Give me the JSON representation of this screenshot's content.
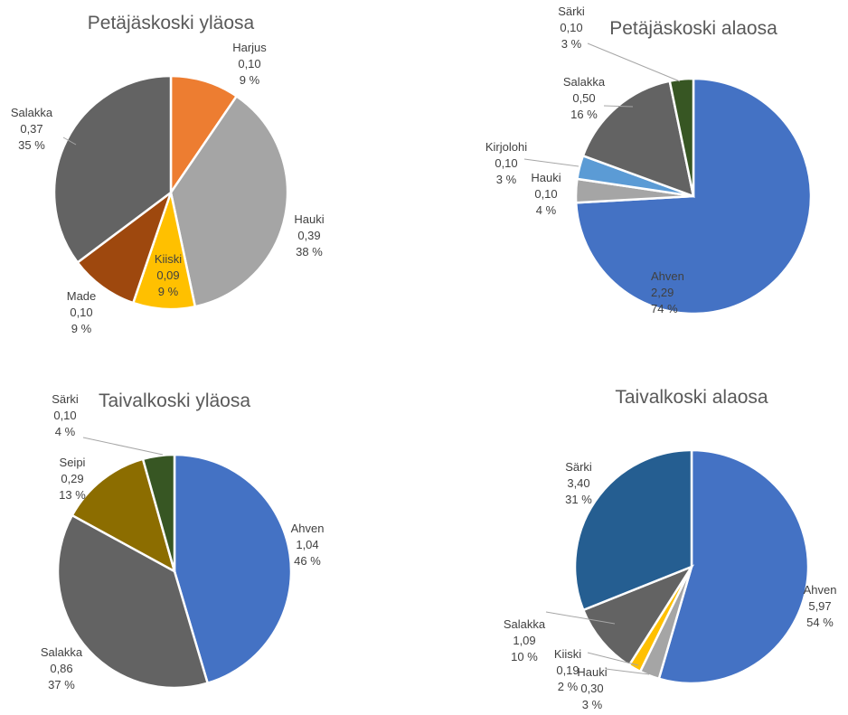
{
  "chart_data": [
    {
      "type": "pie",
      "title": "Petäjäskoski yläosa",
      "slices": [
        {
          "name": "Harjus",
          "value": 0.1,
          "value_text": "0,10",
          "percent_text": "9 %",
          "color": "#ED7D31"
        },
        {
          "name": "Hauki",
          "value": 0.39,
          "value_text": "0,39",
          "percent_text": "38 %",
          "color": "#A5A5A5"
        },
        {
          "name": "Kiiski",
          "value": 0.09,
          "value_text": "0,09",
          "percent_text": "9 %",
          "color": "#FFC000"
        },
        {
          "name": "Made",
          "value": 0.1,
          "value_text": "0,10",
          "percent_text": "9 %",
          "color": "#9E480E"
        },
        {
          "name": "Salakka",
          "value": 0.37,
          "value_text": "0,37",
          "percent_text": "35 %",
          "color": "#636363"
        }
      ]
    },
    {
      "type": "pie",
      "title": "Petäjäskoski alaosa",
      "slices": [
        {
          "name": "Ahven",
          "value": 2.29,
          "value_text": "2,29",
          "percent_text": "74 %",
          "color": "#4472C4"
        },
        {
          "name": "Hauki",
          "value": 0.1,
          "value_text": "0,10",
          "percent_text": "4 %",
          "color": "#A5A5A5"
        },
        {
          "name": "Kirjolohi",
          "value": 0.1,
          "value_text": "0,10",
          "percent_text": "3 %",
          "color": "#5B9BD5"
        },
        {
          "name": "Salakka",
          "value": 0.5,
          "value_text": "0,50",
          "percent_text": "16 %",
          "color": "#636363"
        },
        {
          "name": "Särki",
          "value": 0.1,
          "value_text": "0,10",
          "percent_text": "3 %",
          "color": "#375623"
        }
      ]
    },
    {
      "type": "pie",
      "title": "Taivalkoski  yläosa",
      "slices": [
        {
          "name": "Ahven",
          "value": 1.04,
          "value_text": "1,04",
          "percent_text": "46 %",
          "color": "#4472C4"
        },
        {
          "name": "Salakka",
          "value": 0.86,
          "value_text": "0,86",
          "percent_text": "37 %",
          "color": "#636363"
        },
        {
          "name": "Seipi",
          "value": 0.29,
          "value_text": "0,29",
          "percent_text": "13 %",
          "color": "#8C6D00"
        },
        {
          "name": "Särki",
          "value": 0.1,
          "value_text": "0,10",
          "percent_text": "4 %",
          "color": "#375623"
        }
      ]
    },
    {
      "type": "pie",
      "title": "Taivalkoski alaosa",
      "slices": [
        {
          "name": "Ahven",
          "value": 5.97,
          "value_text": "5,97",
          "percent_text": "54 %",
          "color": "#4472C4"
        },
        {
          "name": "Hauki",
          "value": 0.3,
          "value_text": "0,30",
          "percent_text": "3 %",
          "color": "#A5A5A5"
        },
        {
          "name": "Kiiski",
          "value": 0.19,
          "value_text": "0,19",
          "percent_text": "2 %",
          "color": "#FFC000"
        },
        {
          "name": "Salakka",
          "value": 1.09,
          "value_text": "1,09",
          "percent_text": "10 %",
          "color": "#636363"
        },
        {
          "name": "Särki",
          "value": 3.4,
          "value_text": "3,40",
          "percent_text": "31 %",
          "color": "#255E91"
        }
      ]
    }
  ]
}
